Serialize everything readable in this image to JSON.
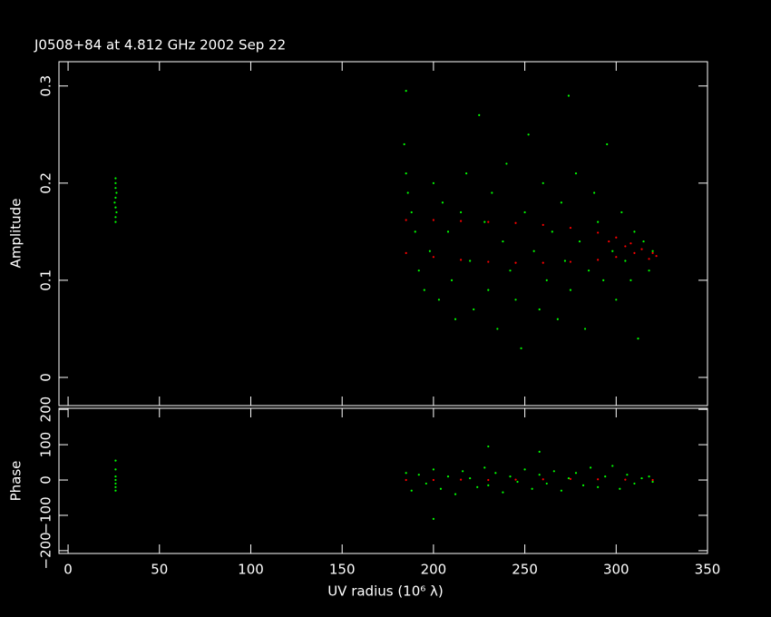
{
  "chart_data": [
    {
      "type": "scatter",
      "title": "J0508+84 at 4.812 GHz 2002 Sep 22",
      "y_label": "Amplitude",
      "xlim": [
        -5,
        350
      ],
      "ylim": [
        -0.029,
        0.325
      ],
      "yticks": [
        0,
        0.1,
        0.2,
        0.3
      ],
      "series": [
        {
          "color": "#00ff00",
          "x": [
            26,
            26,
            26,
            26,
            26,
            26.5,
            26.5,
            25.5,
            26,
            26,
            185,
            186,
            188,
            190,
            192,
            195,
            198,
            200,
            203,
            205,
            208,
            210,
            212,
            215,
            218,
            220,
            222,
            225,
            228,
            230,
            232,
            235,
            238,
            240,
            242,
            245,
            248,
            250,
            252,
            255,
            258,
            260,
            262,
            265,
            268,
            270,
            272,
            275,
            278,
            280,
            283,
            285,
            288,
            290,
            293,
            295,
            298,
            300,
            303,
            305,
            308,
            310,
            312,
            315,
            318,
            320,
            184,
            274,
            185
          ],
          "values": [
            0.165,
            0.175,
            0.185,
            0.195,
            0.205,
            0.17,
            0.19,
            0.18,
            0.2,
            0.16,
            0.21,
            0.19,
            0.17,
            0.15,
            0.11,
            0.09,
            0.13,
            0.2,
            0.08,
            0.18,
            0.15,
            0.1,
            0.06,
            0.17,
            0.21,
            0.12,
            0.07,
            0.27,
            0.16,
            0.09,
            0.19,
            0.05,
            0.14,
            0.22,
            0.11,
            0.08,
            0.03,
            0.17,
            0.25,
            0.13,
            0.07,
            0.2,
            0.1,
            0.15,
            0.06,
            0.18,
            0.12,
            0.09,
            0.21,
            0.14,
            0.05,
            0.11,
            0.19,
            0.16,
            0.1,
            0.24,
            0.13,
            0.08,
            0.17,
            0.12,
            0.1,
            0.15,
            0.04,
            0.14,
            0.11,
            0.13,
            0.24,
            0.29,
            0.295
          ]
        },
        {
          "color": "#ff0000",
          "x": [
            185,
            200,
            215,
            230,
            245,
            260,
            275,
            290,
            300,
            308,
            314,
            320,
            322,
            185,
            200,
            215,
            230,
            245,
            260,
            275,
            290,
            300,
            310,
            318,
            305,
            296
          ],
          "values": [
            0.162,
            0.162,
            0.161,
            0.16,
            0.159,
            0.157,
            0.154,
            0.149,
            0.144,
            0.138,
            0.132,
            0.128,
            0.125,
            0.128,
            0.124,
            0.121,
            0.119,
            0.118,
            0.118,
            0.119,
            0.121,
            0.124,
            0.128,
            0.122,
            0.135,
            0.14
          ]
        }
      ]
    },
    {
      "type": "scatter",
      "x_label": "UV radius  (10⁶ λ)",
      "y_label": "Phase",
      "xlim": [
        -5,
        350
      ],
      "xticks": [
        0,
        50,
        100,
        150,
        200,
        250,
        300,
        350
      ],
      "ylim": [
        -208,
        203
      ],
      "yticks": [
        {
          "value": -200,
          "label": "−200"
        },
        {
          "value": -100,
          "label": "−100"
        },
        0,
        100,
        200
      ],
      "series": [
        {
          "color": "#00ff00",
          "x": [
            26,
            26,
            26,
            26,
            26,
            26,
            26,
            185,
            188,
            192,
            196,
            200,
            204,
            208,
            212,
            216,
            220,
            224,
            228,
            230,
            234,
            238,
            242,
            246,
            250,
            254,
            258,
            262,
            266,
            270,
            274,
            278,
            282,
            286,
            290,
            294,
            298,
            302,
            306,
            310,
            314,
            318,
            320,
            200,
            230,
            258
          ],
          "values": [
            -30,
            -10,
            10,
            30,
            55,
            -20,
            0,
            20,
            -30,
            15,
            -10,
            30,
            -25,
            10,
            -40,
            25,
            5,
            -20,
            35,
            -15,
            20,
            -35,
            10,
            -5,
            30,
            -25,
            15,
            -10,
            25,
            -30,
            5,
            20,
            -15,
            35,
            -20,
            10,
            40,
            -25,
            15,
            -10,
            5,
            10,
            -5,
            -110,
            95,
            80
          ]
        },
        {
          "color": "#ff0000",
          "x": [
            185,
            200,
            215,
            230,
            245,
            260,
            275,
            290,
            305,
            320
          ],
          "values": [
            0,
            0,
            1,
            0,
            1,
            2,
            3,
            2,
            1,
            0
          ]
        }
      ]
    }
  ]
}
